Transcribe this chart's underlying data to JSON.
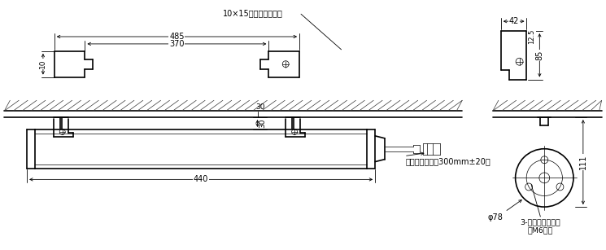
{
  "bg_color": "#ffffff",
  "line_color": "#000000",
  "text_color": "#000000",
  "annotations": {
    "dim_485": "485",
    "dim_370": "370",
    "dim_10": "10",
    "dim_30": "30",
    "dim_440": "440",
    "dim_42": "42",
    "dim_12_5": "12.5",
    "dim_85": "85",
    "dim_78": "φ78",
    "dim_111": "111",
    "label_hole": "10×15長稴（取付用）",
    "label_cable": "ケーブル（長さ300mm±20）",
    "label_bolt": "3-六角稴付ボルト",
    "label_bolt2": "（M6用）"
  }
}
